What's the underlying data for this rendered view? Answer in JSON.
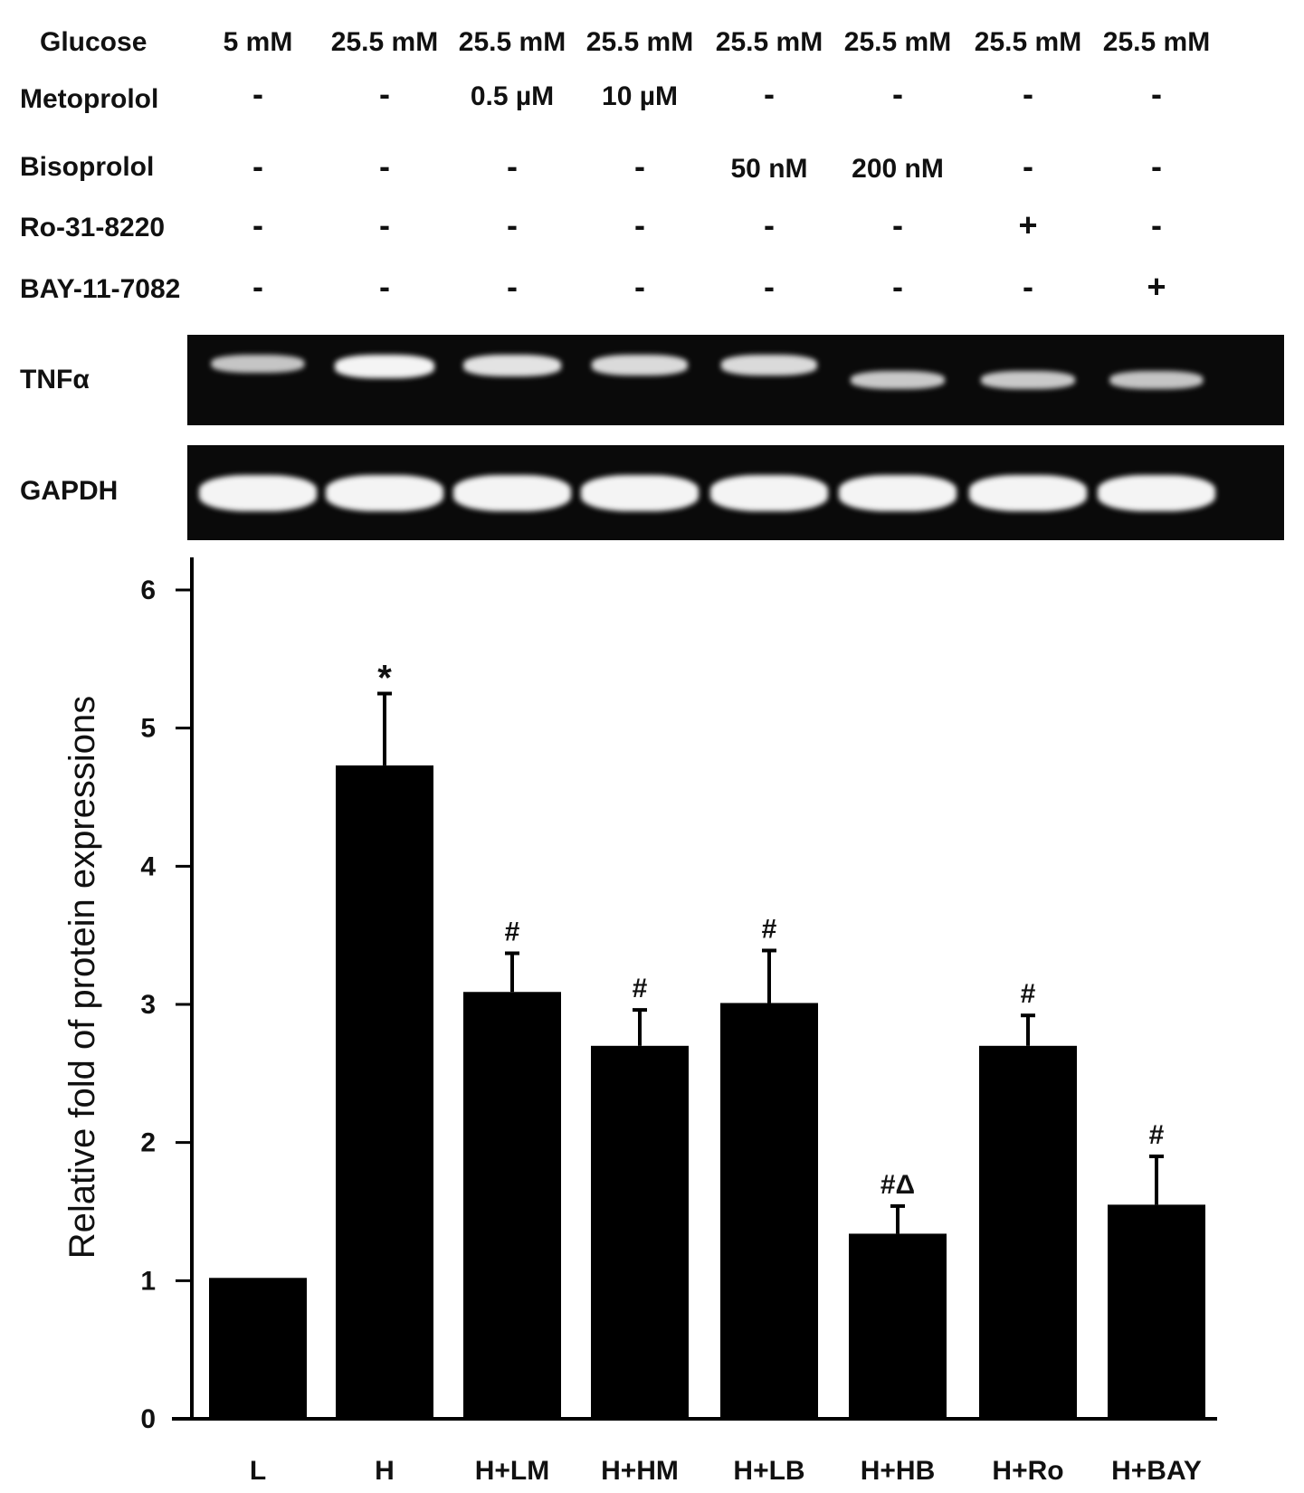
{
  "header": {
    "rows": [
      {
        "label": "Glucose",
        "cells": [
          "5 mM",
          "25.5 mM",
          "25.5 mM",
          "25.5 mM",
          "25.5 mM",
          "25.5 mM",
          "25.5 mM",
          "25.5 mM"
        ]
      },
      {
        "label": "Metoprolol",
        "cells": [
          "-",
          "-",
          "0.5 µM",
          "10 µM",
          "-",
          "-",
          "-",
          "-"
        ]
      },
      {
        "label": "Bisoprolol",
        "cells": [
          "-",
          "-",
          "-",
          "-",
          "50 nM",
          "200 nM",
          "-",
          "-"
        ]
      },
      {
        "label": "Ro-31-8220",
        "cells": [
          "-",
          "-",
          "-",
          "-",
          "-",
          "-",
          "+",
          "-"
        ]
      },
      {
        "label": "BAY-11-7082",
        "cells": [
          "-",
          "-",
          "-",
          "-",
          "-",
          "-",
          "-",
          "+"
        ]
      }
    ]
  },
  "gels": [
    {
      "label": "TNFα",
      "band_intensity": [
        0.55,
        1.0,
        0.85,
        0.75,
        0.75,
        0.6,
        0.6,
        0.55
      ]
    },
    {
      "label": "GAPDH",
      "band_intensity": [
        1,
        1,
        1,
        1,
        1,
        1,
        1,
        1
      ]
    }
  ],
  "chart_data": {
    "type": "bar",
    "categories": [
      "L",
      "H",
      "H+LM",
      "H+HM",
      "H+LB",
      "H+HB",
      "H+Ro",
      "H+BAY"
    ],
    "values": [
      1.02,
      4.73,
      3.09,
      2.7,
      3.01,
      1.34,
      2.7,
      1.55
    ],
    "errors": [
      0,
      0.52,
      0.28,
      0.26,
      0.38,
      0.2,
      0.22,
      0.35
    ],
    "annotations": [
      "",
      "*",
      "#",
      "#",
      "#",
      "#Δ",
      "#",
      "#"
    ],
    "ylabel": "Relative fold of protein expressions",
    "xlabel": "",
    "ylim": [
      0,
      6
    ],
    "yticks": [
      "0",
      "1",
      "2",
      "3",
      "4",
      "5",
      "6"
    ],
    "bar_color": "#000000",
    "grid": false
  }
}
